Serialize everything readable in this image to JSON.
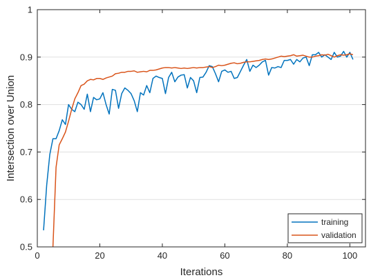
{
  "chart_data": {
    "type": "line",
    "title": "",
    "xlabel": "Iterations",
    "ylabel": "Intersection over Union",
    "xlim": [
      0,
      105
    ],
    "ylim": [
      0.5,
      1
    ],
    "xticks": [
      0,
      20,
      40,
      60,
      80,
      100
    ],
    "yticks": [
      0.5,
      0.6,
      0.7,
      0.8,
      0.9,
      1
    ],
    "xtick_labels": [
      "0",
      "20",
      "40",
      "60",
      "80",
      "100"
    ],
    "ytick_labels": [
      "0.5",
      "0.6",
      "0.7",
      "0.8",
      "0.9",
      "1"
    ],
    "grid": "horizontal",
    "legend_position": "bottom-right",
    "series": [
      {
        "name": "training",
        "color": "#0072BD",
        "x": [
          2,
          3,
          4,
          5,
          6,
          7,
          8,
          9,
          10,
          11,
          12,
          13,
          14,
          15,
          16,
          17,
          18,
          19,
          20,
          21,
          22,
          23,
          24,
          25,
          26,
          27,
          28,
          29,
          30,
          31,
          32,
          33,
          34,
          35,
          36,
          37,
          38,
          39,
          40,
          41,
          42,
          43,
          44,
          45,
          46,
          47,
          48,
          49,
          50,
          51,
          52,
          53,
          54,
          55,
          56,
          57,
          58,
          59,
          60,
          61,
          62,
          63,
          64,
          65,
          66,
          67,
          68,
          69,
          70,
          71,
          72,
          73,
          74,
          75,
          76,
          77,
          78,
          79,
          80,
          81,
          82,
          83,
          84,
          85,
          86,
          87,
          88,
          89,
          90,
          91,
          92,
          93,
          94,
          95,
          96,
          97,
          98,
          99,
          100,
          101
        ],
        "y": [
          0.535,
          0.63,
          0.695,
          0.728,
          0.728,
          0.745,
          0.768,
          0.758,
          0.8,
          0.79,
          0.785,
          0.805,
          0.8,
          0.79,
          0.822,
          0.785,
          0.815,
          0.81,
          0.812,
          0.825,
          0.8,
          0.78,
          0.832,
          0.83,
          0.792,
          0.823,
          0.835,
          0.83,
          0.823,
          0.808,
          0.785,
          0.825,
          0.82,
          0.84,
          0.825,
          0.855,
          0.86,
          0.857,
          0.855,
          0.823,
          0.857,
          0.868,
          0.848,
          0.858,
          0.862,
          0.863,
          0.835,
          0.857,
          0.85,
          0.825,
          0.857,
          0.858,
          0.868,
          0.882,
          0.88,
          0.865,
          0.848,
          0.87,
          0.873,
          0.868,
          0.87,
          0.855,
          0.857,
          0.87,
          0.883,
          0.895,
          0.87,
          0.883,
          0.878,
          0.883,
          0.89,
          0.893,
          0.862,
          0.878,
          0.877,
          0.88,
          0.878,
          0.893,
          0.893,
          0.895,
          0.885,
          0.895,
          0.89,
          0.898,
          0.9,
          0.882,
          0.905,
          0.905,
          0.91,
          0.9,
          0.905,
          0.9,
          0.895,
          0.91,
          0.9,
          0.902,
          0.912,
          0.9,
          0.91,
          0.895
        ]
      },
      {
        "name": "validation",
        "color": "#D95319",
        "x": [
          5,
          6,
          7,
          8,
          9,
          10,
          11,
          12,
          13,
          14,
          15,
          16,
          17,
          18,
          19,
          20,
          21,
          22,
          23,
          24,
          25,
          26,
          27,
          28,
          29,
          30,
          31,
          32,
          33,
          34,
          35,
          36,
          37,
          38,
          39,
          40,
          41,
          42,
          43,
          44,
          45,
          46,
          47,
          48,
          49,
          50,
          51,
          52,
          53,
          54,
          55,
          56,
          57,
          58,
          59,
          60,
          61,
          62,
          63,
          64,
          65,
          66,
          67,
          68,
          69,
          70,
          71,
          72,
          73,
          74,
          75,
          76,
          77,
          78,
          79,
          80,
          81,
          82,
          83,
          84,
          85,
          86,
          87,
          88,
          89,
          90,
          91,
          92,
          93,
          94,
          95,
          96,
          97,
          98,
          99,
          100,
          101
        ],
        "y": [
          0.5,
          0.668,
          0.715,
          0.728,
          0.742,
          0.765,
          0.79,
          0.812,
          0.825,
          0.84,
          0.843,
          0.85,
          0.853,
          0.852,
          0.855,
          0.855,
          0.853,
          0.856,
          0.858,
          0.86,
          0.865,
          0.866,
          0.868,
          0.868,
          0.87,
          0.87,
          0.871,
          0.868,
          0.869,
          0.87,
          0.869,
          0.872,
          0.872,
          0.873,
          0.875,
          0.877,
          0.878,
          0.878,
          0.877,
          0.878,
          0.877,
          0.876,
          0.877,
          0.876,
          0.877,
          0.878,
          0.877,
          0.878,
          0.878,
          0.879,
          0.88,
          0.878,
          0.88,
          0.883,
          0.882,
          0.883,
          0.885,
          0.887,
          0.888,
          0.886,
          0.887,
          0.889,
          0.89,
          0.89,
          0.891,
          0.892,
          0.893,
          0.895,
          0.896,
          0.895,
          0.896,
          0.898,
          0.9,
          0.902,
          0.901,
          0.902,
          0.903,
          0.905,
          0.902,
          0.903,
          0.904,
          0.902,
          0.9,
          0.9,
          0.902,
          0.903,
          0.905,
          0.904,
          0.906,
          0.903,
          0.9,
          0.903,
          0.905,
          0.904,
          0.905,
          0.907,
          0.905
        ]
      }
    ]
  }
}
